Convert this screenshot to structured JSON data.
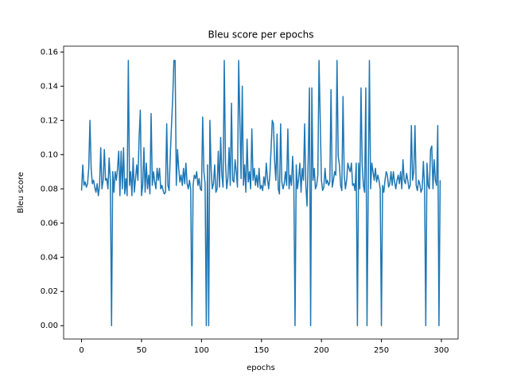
{
  "chart_data": {
    "type": "line",
    "title": "Bleu score per epochs",
    "x_label": "epochs",
    "y_label": "Bleu score",
    "color": "#1f77b4",
    "grid": false,
    "xlim": [
      -14.95,
      313.95
    ],
    "ylim": [
      -0.0078,
      0.1634
    ],
    "xticks": [
      0,
      50,
      100,
      150,
      200,
      250,
      300
    ],
    "yticks": [
      {
        "value": 0,
        "label": "0.00"
      },
      {
        "value": 0.02,
        "label": "0.02"
      },
      {
        "value": 0.04,
        "label": "0.04"
      },
      {
        "value": 0.06,
        "label": "0.06"
      },
      {
        "value": 0.08,
        "label": "0.08"
      },
      {
        "value": 0.1,
        "label": "0.10"
      },
      {
        "value": 0.12,
        "label": "0.12"
      },
      {
        "value": 0.14,
        "label": "0.14"
      },
      {
        "value": 0.16,
        "label": "0.16"
      }
    ],
    "x": [
      0,
      1,
      2,
      3,
      4,
      5,
      6,
      7,
      8,
      9,
      10,
      11,
      12,
      13,
      14,
      15,
      16,
      17,
      18,
      19,
      20,
      21,
      22,
      23,
      24,
      25,
      26,
      27,
      28,
      29,
      30,
      31,
      32,
      33,
      34,
      35,
      36,
      37,
      38,
      39,
      40,
      41,
      42,
      43,
      44,
      45,
      46,
      47,
      48,
      49,
      50,
      51,
      52,
      53,
      54,
      55,
      56,
      57,
      58,
      59,
      60,
      61,
      62,
      63,
      64,
      65,
      66,
      67,
      68,
      69,
      70,
      71,
      72,
      73,
      74,
      75,
      76,
      77,
      78,
      79,
      80,
      81,
      82,
      83,
      84,
      85,
      86,
      87,
      88,
      89,
      90,
      91,
      92,
      93,
      94,
      95,
      96,
      97,
      98,
      99,
      100,
      101,
      102,
      103,
      104,
      105,
      106,
      107,
      108,
      109,
      110,
      111,
      112,
      113,
      114,
      115,
      116,
      117,
      118,
      119,
      120,
      121,
      122,
      123,
      124,
      125,
      126,
      127,
      128,
      129,
      130,
      131,
      132,
      133,
      134,
      135,
      136,
      137,
      138,
      139,
      140,
      141,
      142,
      143,
      144,
      145,
      146,
      147,
      148,
      149,
      150,
      151,
      152,
      153,
      154,
      155,
      156,
      157,
      158,
      159,
      160,
      161,
      162,
      163,
      164,
      165,
      166,
      167,
      168,
      169,
      170,
      171,
      172,
      173,
      174,
      175,
      176,
      177,
      178,
      179,
      180,
      181,
      182,
      183,
      184,
      185,
      186,
      187,
      188,
      189,
      190,
      191,
      192,
      193,
      194,
      195,
      196,
      197,
      198,
      199,
      200,
      201,
      202,
      203,
      204,
      205,
      206,
      207,
      208,
      209,
      210,
      211,
      212,
      213,
      214,
      215,
      216,
      217,
      218,
      219,
      220,
      221,
      222,
      223,
      224,
      225,
      226,
      227,
      228,
      229,
      230,
      231,
      232,
      233,
      234,
      235,
      236,
      237,
      238,
      239,
      240,
      241,
      242,
      243,
      244,
      245,
      246,
      247,
      248,
      249,
      250,
      251,
      252,
      253,
      254,
      255,
      256,
      257,
      258,
      259,
      260,
      261,
      262,
      263,
      264,
      265,
      266,
      267,
      268,
      269,
      270,
      271,
      272,
      273,
      274,
      275,
      276,
      277,
      278,
      279,
      280,
      281,
      282,
      283,
      284,
      285,
      286,
      287,
      288,
      289,
      290,
      291,
      292,
      293,
      294,
      295,
      296,
      297,
      298,
      299
    ],
    "values": [
      0.079,
      0.094,
      0.082,
      0.084,
      0.081,
      0.083,
      0.092,
      0.12,
      0.092,
      0.083,
      0.085,
      0.081,
      0.078,
      0.083,
      0.076,
      0.082,
      0.104,
      0.08,
      0.085,
      0.103,
      0.085,
      0.086,
      0.08,
      0.098,
      0.085,
      0.0,
      0.09,
      0.078,
      0.09,
      0.085,
      0.092,
      0.102,
      0.076,
      0.102,
      0.08,
      0.104,
      0.077,
      0.086,
      0.076,
      0.155,
      0.082,
      0.09,
      0.076,
      0.098,
      0.078,
      0.086,
      0.094,
      0.085,
      0.11,
      0.126,
      0.076,
      0.082,
      0.104,
      0.078,
      0.095,
      0.08,
      0.088,
      0.077,
      0.124,
      0.082,
      0.09,
      0.084,
      0.08,
      0.092,
      0.085,
      0.092,
      0.08,
      0.082,
      0.079,
      0.077,
      0.078,
      0.118,
      0.082,
      0.079,
      0.1,
      0.117,
      0.133,
      0.155,
      0.155,
      0.082,
      0.103,
      0.092,
      0.084,
      0.088,
      0.082,
      0.092,
      0.083,
      0.095,
      0.083,
      0.08,
      0.085,
      0.08,
      0.0,
      0.082,
      0.088,
      0.086,
      0.09,
      0.082,
      0.086,
      0.08,
      0.079,
      0.122,
      0.09,
      0.083,
      0.0,
      0.094,
      0.0,
      0.12,
      0.092,
      0.08,
      0.083,
      0.094,
      0.078,
      0.08,
      0.102,
      0.081,
      0.11,
      0.088,
      0.081,
      0.155,
      0.096,
      0.08,
      0.086,
      0.104,
      0.082,
      0.13,
      0.085,
      0.084,
      0.097,
      0.09,
      0.081,
      0.155,
      0.12,
      0.086,
      0.14,
      0.082,
      0.094,
      0.078,
      0.109,
      0.084,
      0.09,
      0.08,
      0.115,
      0.085,
      0.092,
      0.082,
      0.088,
      0.081,
      0.092,
      0.08,
      0.082,
      0.079,
      0.087,
      0.082,
      0.095,
      0.086,
      0.08,
      0.088,
      0.103,
      0.12,
      0.118,
      0.096,
      0.085,
      0.112,
      0.08,
      0.077,
      0.118,
      0.084,
      0.08,
      0.083,
      0.09,
      0.082,
      0.115,
      0.08,
      0.088,
      0.082,
      0.099,
      0.082,
      0.0,
      0.094,
      0.08,
      0.086,
      0.095,
      0.078,
      0.092,
      0.085,
      0.118,
      0.082,
      0.07,
      0.098,
      0.139,
      0.0,
      0.139,
      0.085,
      0.092,
      0.08,
      0.082,
      0.088,
      0.155,
      0.12,
      0.085,
      0.079,
      0.081,
      0.092,
      0.083,
      0.085,
      0.082,
      0.084,
      0.138,
      0.081,
      0.085,
      0.09,
      0.088,
      0.155,
      0.099,
      0.094,
      0.082,
      0.079,
      0.134,
      0.088,
      0.08,
      0.085,
      0.095,
      0.092,
      0.09,
      0.095,
      0.082,
      0.083,
      0.079,
      0.095,
      0.0,
      0.095,
      0.08,
      0.139,
      0.094,
      0.082,
      0.078,
      0.139,
      0.0,
      0.078,
      0.155,
      0.08,
      0.095,
      0.09,
      0.085,
      0.092,
      0.084,
      0.088,
      0.085,
      0.08,
      0.0,
      0.082,
      0.078,
      0.085,
      0.09,
      0.088,
      0.081,
      0.083,
      0.09,
      0.082,
      0.09,
      0.084,
      0.08,
      0.085,
      0.088,
      0.083,
      0.09,
      0.08,
      0.097,
      0.085,
      0.083,
      0.089,
      0.085,
      0.08,
      0.082,
      0.117,
      0.085,
      0.09,
      0.117,
      0.082,
      0.079,
      0.085,
      0.083,
      0.078,
      0.08,
      0.096,
      0.081,
      0.0,
      0.095,
      0.082,
      0.08,
      0.103,
      0.105,
      0.08,
      0.097,
      0.085,
      0.082,
      0.117,
      0.0,
      0.085
    ]
  }
}
